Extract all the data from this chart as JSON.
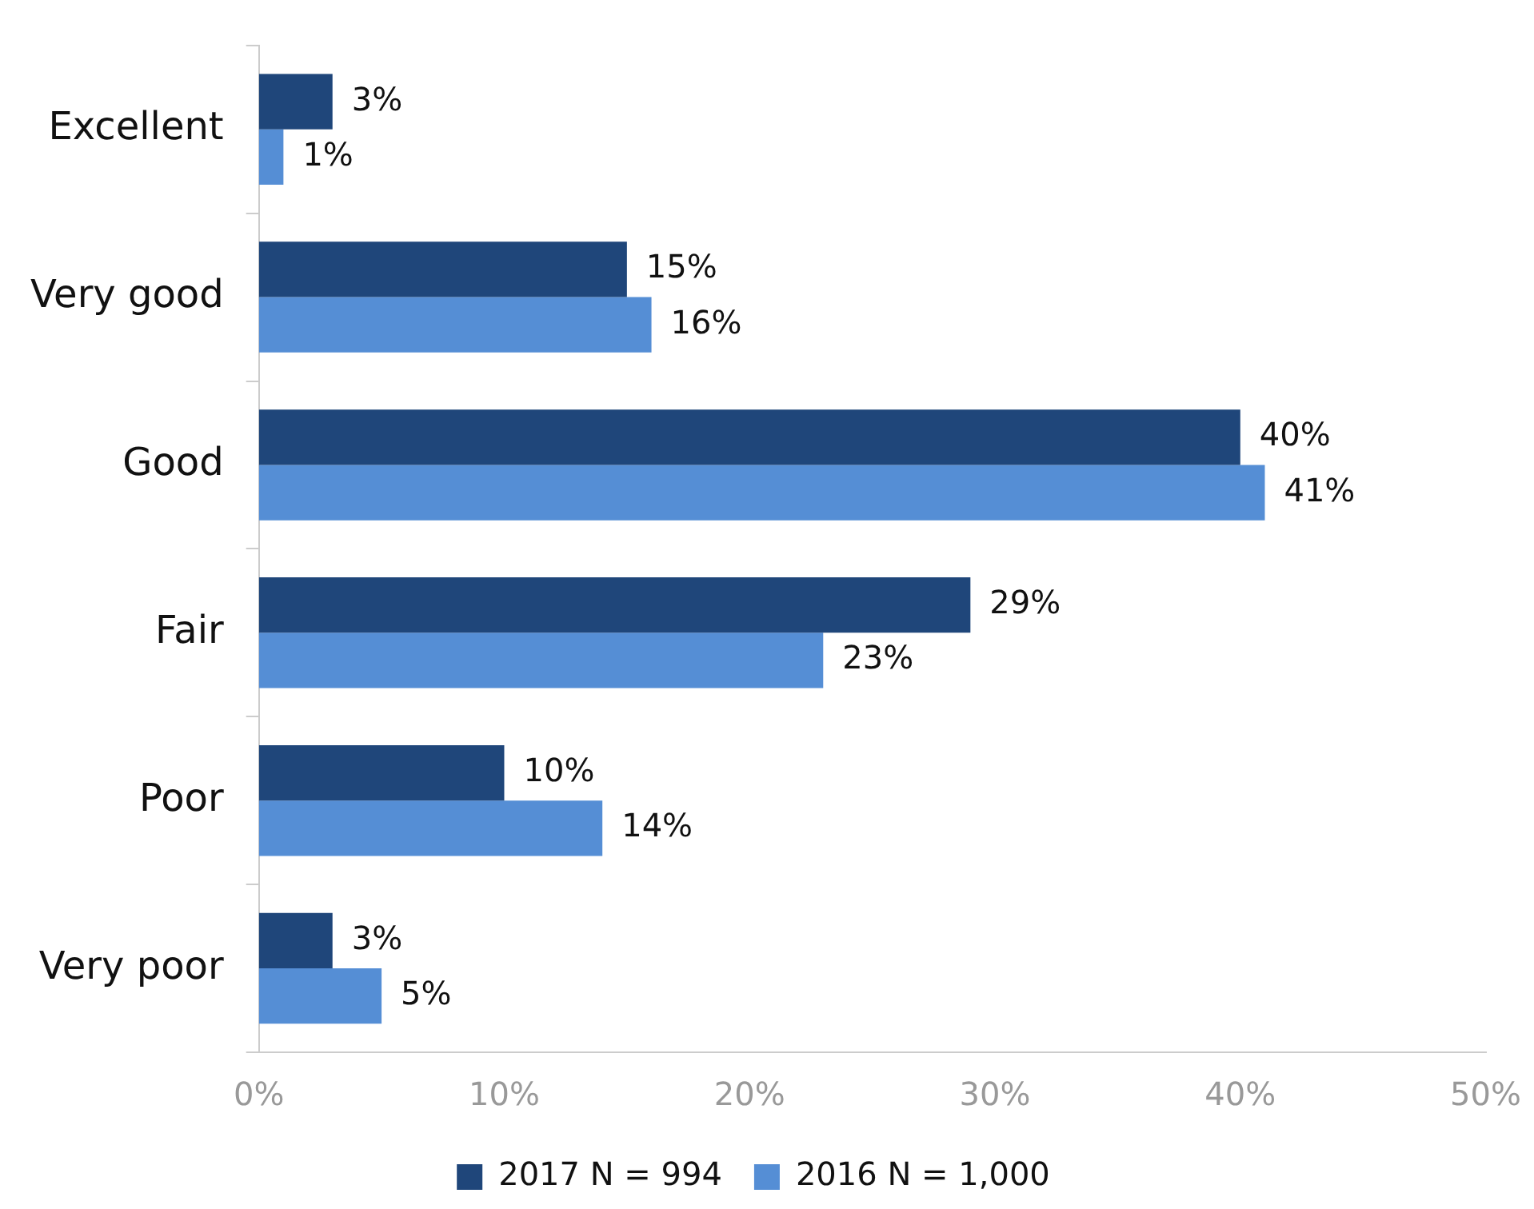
{
  "chart_data": {
    "type": "bar",
    "orientation": "horizontal",
    "categories": [
      "Excellent",
      "Very good",
      "Good",
      "Fair",
      "Poor",
      "Very poor"
    ],
    "series": [
      {
        "name": "2017 N = 994",
        "color": "#1f467a",
        "values": [
          3,
          15,
          40,
          29,
          10,
          3
        ],
        "value_labels": [
          "3%",
          "15%",
          "40%",
          "29%",
          "10%",
          "3%"
        ]
      },
      {
        "name": "2016 N = 1,000",
        "color": "#558ed5",
        "values": [
          1,
          16,
          41,
          23,
          14,
          5
        ],
        "value_labels": [
          "1%",
          "16%",
          "41%",
          "23%",
          "14%",
          "5%"
        ]
      }
    ],
    "xlim": [
      0,
      50
    ],
    "xticks": [
      {
        "value": 0,
        "label": "0%"
      },
      {
        "value": 10,
        "label": "10%"
      },
      {
        "value": 20,
        "label": "20%"
      },
      {
        "value": 30,
        "label": "30%"
      },
      {
        "value": 40,
        "label": "40%"
      },
      {
        "value": 50,
        "label": "50%"
      }
    ],
    "grid": false,
    "legend": "bottom"
  }
}
